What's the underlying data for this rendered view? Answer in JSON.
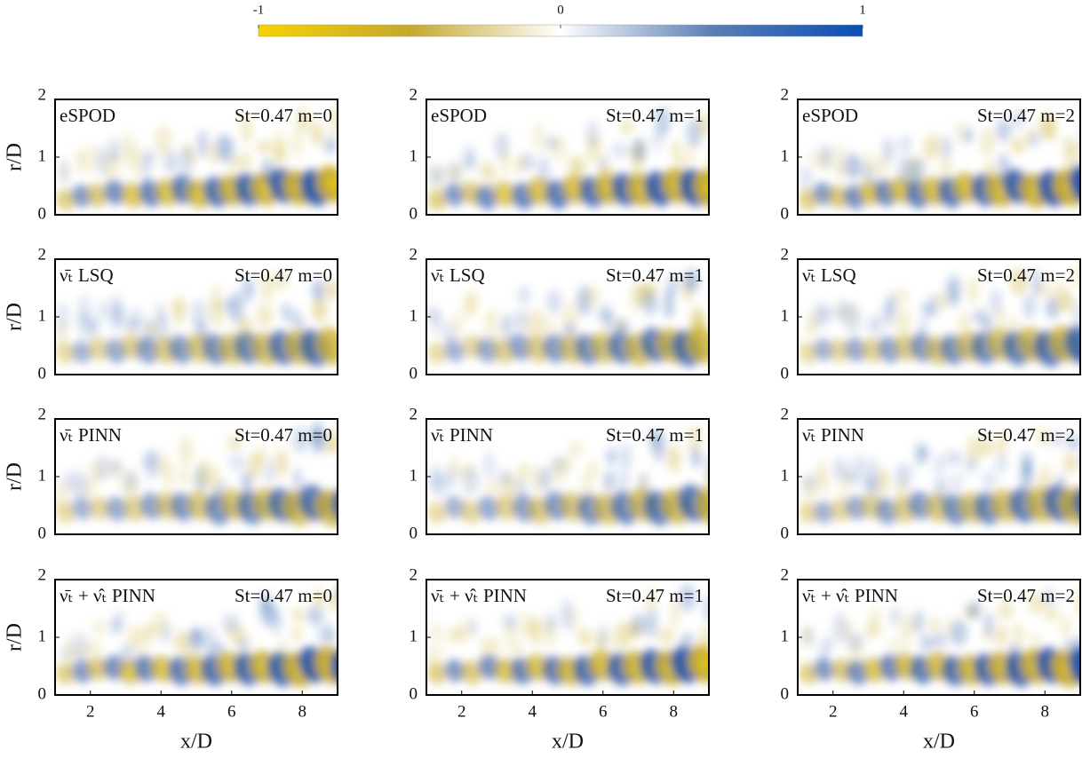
{
  "colorbar": {
    "lim": [
      -1,
      1
    ],
    "ticks": [
      -1,
      0,
      1
    ],
    "colors": [
      "#f7d300",
      "#c4a82e",
      "#ffffff",
      "#5c7fb4",
      "#0a4eb3"
    ]
  },
  "chart_data": [
    {
      "type": "contour",
      "title": "eSPOD",
      "subtitle": "St=0.47 m=0",
      "xlim": [
        1,
        9
      ],
      "ylim": [
        0,
        2
      ],
      "yticks": [
        0,
        1,
        2
      ],
      "ylabel": "r/D"
    },
    {
      "type": "contour",
      "title": "eSPOD",
      "subtitle": "St=0.47 m=1",
      "xlim": [
        1,
        9
      ],
      "ylim": [
        0,
        2
      ],
      "yticks": [
        0,
        1,
        2
      ]
    },
    {
      "type": "contour",
      "title": "eSPOD",
      "subtitle": "St=0.47 m=2",
      "xlim": [
        1,
        9
      ],
      "ylim": [
        0,
        2
      ],
      "yticks": [
        0,
        1,
        2
      ]
    },
    {
      "type": "contour",
      "title": "ν̄ₜ LSQ",
      "subtitle": "St=0.47 m=0",
      "xlim": [
        1,
        9
      ],
      "ylim": [
        0,
        2
      ],
      "yticks": [
        0,
        1,
        2
      ],
      "ylabel": "r/D"
    },
    {
      "type": "contour",
      "title": "ν̄ₜ LSQ",
      "subtitle": "St=0.47 m=1",
      "xlim": [
        1,
        9
      ],
      "ylim": [
        0,
        2
      ],
      "yticks": [
        0,
        1,
        2
      ]
    },
    {
      "type": "contour",
      "title": "ν̄ₜ LSQ",
      "subtitle": "St=0.47 m=2",
      "xlim": [
        1,
        9
      ],
      "ylim": [
        0,
        2
      ],
      "yticks": [
        0,
        1,
        2
      ]
    },
    {
      "type": "contour",
      "title": "ν̄ₜ PINN",
      "subtitle": "St=0.47 m=0",
      "xlim": [
        1,
        9
      ],
      "ylim": [
        0,
        2
      ],
      "yticks": [
        0,
        1,
        2
      ],
      "ylabel": "r/D"
    },
    {
      "type": "contour",
      "title": "ν̄ₜ PINN",
      "subtitle": "St=0.47 m=1",
      "xlim": [
        1,
        9
      ],
      "ylim": [
        0,
        2
      ],
      "yticks": [
        0,
        1,
        2
      ]
    },
    {
      "type": "contour",
      "title": "ν̄ₜ PINN",
      "subtitle": "St=0.47 m=2",
      "xlim": [
        1,
        9
      ],
      "ylim": [
        0,
        2
      ],
      "yticks": [
        0,
        1,
        2
      ]
    },
    {
      "type": "contour",
      "title": "ν̄ₜ + ν̂ₜ PINN",
      "subtitle": "St=0.47 m=0",
      "xlim": [
        1,
        9
      ],
      "ylim": [
        0,
        2
      ],
      "xticks": [
        2,
        4,
        6,
        8
      ],
      "yticks": [
        0,
        1,
        2
      ],
      "xlabel": "x/D",
      "ylabel": "r/D"
    },
    {
      "type": "contour",
      "title": "ν̄ₜ + ν̂ₜ PINN",
      "subtitle": "St=0.47 m=1",
      "xlim": [
        1,
        9
      ],
      "ylim": [
        0,
        2
      ],
      "xticks": [
        2,
        4,
        6,
        8
      ],
      "yticks": [
        0,
        1,
        2
      ],
      "xlabel": "x/D"
    },
    {
      "type": "contour",
      "title": "ν̄ₜ + ν̂ₜ PINN",
      "subtitle": "St=0.47 m=2",
      "xlim": [
        1,
        9
      ],
      "ylim": [
        0,
        2
      ],
      "xticks": [
        2,
        4,
        6,
        8
      ],
      "yticks": [
        0,
        1,
        2
      ],
      "xlabel": "x/D"
    }
  ]
}
